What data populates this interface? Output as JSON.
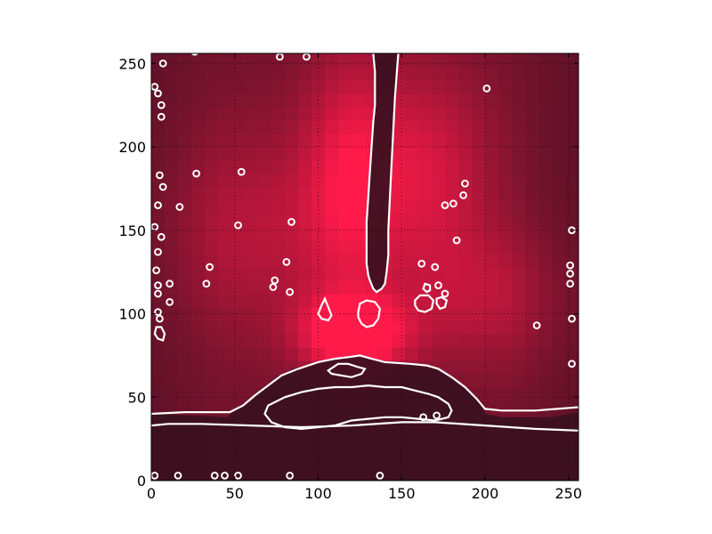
{
  "chart_data": {
    "type": "heatmap",
    "title": "",
    "xlabel": "",
    "ylabel": "",
    "xlim": [
      0,
      256
    ],
    "ylim": [
      0,
      256
    ],
    "xticks": [
      0,
      50,
      100,
      150,
      200,
      250
    ],
    "yticks": [
      0,
      50,
      100,
      150,
      200,
      250
    ],
    "grid": true,
    "grid_style": "dotted",
    "colormap": {
      "low": "#3a1020",
      "high": "#ff1a4a"
    },
    "contour_color": "#ffffff",
    "field_peaks": [
      {
        "x": 122,
        "y": 88,
        "sx": 22,
        "sy": 16,
        "amp": 1.0
      },
      {
        "x": 118,
        "y": 180,
        "sx": 20,
        "sy": 55,
        "amp": 0.55
      },
      {
        "x": 165,
        "y": 185,
        "sx": 28,
        "sy": 45,
        "amp": 0.5
      },
      {
        "x": 200,
        "y": 110,
        "sx": 35,
        "sy": 30,
        "amp": 0.35
      },
      {
        "x": 60,
        "y": 150,
        "sx": 40,
        "sy": 45,
        "amp": 0.35
      }
    ],
    "dark_regions": [
      {
        "name": "vertical-channel",
        "points": [
          [
            133,
            256
          ],
          [
            134,
            245
          ],
          [
            134,
            225
          ],
          [
            133,
            215
          ],
          [
            132,
            200
          ],
          [
            131,
            185
          ],
          [
            130,
            170
          ],
          [
            129,
            155
          ],
          [
            129,
            140
          ],
          [
            129,
            130
          ],
          [
            130,
            123
          ],
          [
            131,
            120
          ],
          [
            133,
            115
          ],
          [
            135,
            113
          ],
          [
            138,
            115
          ],
          [
            140,
            118
          ],
          [
            141,
            125
          ],
          [
            142,
            135
          ],
          [
            142,
            150
          ],
          [
            143,
            170
          ],
          [
            144,
            190
          ],
          [
            145,
            210
          ],
          [
            146,
            230
          ],
          [
            148,
            256
          ]
        ]
      },
      {
        "name": "bottom-dome",
        "points": [
          [
            0,
            0
          ],
          [
            256,
            0
          ],
          [
            256,
            30
          ],
          [
            230,
            31
          ],
          [
            200,
            33
          ],
          [
            170,
            35
          ],
          [
            150,
            35
          ],
          [
            120,
            33
          ],
          [
            90,
            32
          ],
          [
            60,
            33
          ],
          [
            30,
            34
          ],
          [
            0,
            33
          ]
        ]
      },
      {
        "name": "mound",
        "points": [
          [
            45,
            38
          ],
          [
            50,
            42
          ],
          [
            60,
            48
          ],
          [
            68,
            55
          ],
          [
            75,
            62
          ],
          [
            85,
            67
          ],
          [
            100,
            71
          ],
          [
            110,
            73
          ],
          [
            118,
            74
          ],
          [
            125,
            75
          ],
          [
            132,
            73
          ],
          [
            145,
            71
          ],
          [
            160,
            69
          ],
          [
            170,
            67
          ],
          [
            180,
            62
          ],
          [
            190,
            55
          ],
          [
            197,
            48
          ],
          [
            200,
            40
          ],
          [
            210,
            38
          ],
          [
            240,
            38
          ],
          [
            256,
            41
          ],
          [
            256,
            30
          ],
          [
            200,
            33
          ],
          [
            150,
            35
          ],
          [
            100,
            32
          ],
          [
            50,
            33
          ],
          [
            0,
            33
          ],
          [
            0,
            40
          ]
        ]
      }
    ],
    "contours": [
      {
        "name": "vertical-channel-outline",
        "points": [
          [
            133,
            256
          ],
          [
            134,
            245
          ],
          [
            134,
            225
          ],
          [
            133,
            215
          ],
          [
            132,
            200
          ],
          [
            131,
            185
          ],
          [
            130,
            170
          ],
          [
            129,
            155
          ],
          [
            129,
            140
          ],
          [
            129,
            130
          ],
          [
            130,
            123
          ],
          [
            131,
            120
          ],
          [
            133,
            115
          ],
          [
            135,
            113
          ],
          [
            138,
            115
          ],
          [
            140,
            118
          ],
          [
            141,
            125
          ],
          [
            142,
            135
          ],
          [
            142,
            150
          ],
          [
            143,
            170
          ],
          [
            144,
            190
          ],
          [
            145,
            210
          ],
          [
            146,
            230
          ],
          [
            148,
            256
          ]
        ],
        "closed": false
      },
      {
        "name": "channel-blob",
        "points": [
          [
            124,
            101
          ],
          [
            125,
            106
          ],
          [
            129,
            108
          ],
          [
            134,
            107
          ],
          [
            137,
            103
          ],
          [
            136,
            97
          ],
          [
            133,
            93
          ],
          [
            129,
            92
          ],
          [
            126,
            94
          ],
          [
            124,
            98
          ]
        ],
        "closed": true
      },
      {
        "name": "bottom-dome-outline",
        "points": [
          [
            0,
            33
          ],
          [
            10,
            34
          ],
          [
            30,
            34
          ],
          [
            60,
            33
          ],
          [
            90,
            32
          ],
          [
            120,
            33
          ],
          [
            150,
            35
          ],
          [
            170,
            35
          ],
          [
            200,
            33
          ],
          [
            230,
            31
          ],
          [
            256,
            30
          ]
        ],
        "closed": false
      },
      {
        "name": "mound-outer",
        "points": [
          [
            0,
            40
          ],
          [
            20,
            41
          ],
          [
            47,
            41
          ],
          [
            55,
            45
          ],
          [
            62,
            51
          ],
          [
            70,
            57
          ],
          [
            78,
            63
          ],
          [
            88,
            67
          ],
          [
            100,
            71
          ],
          [
            110,
            73
          ],
          [
            118,
            74
          ],
          [
            125,
            75
          ],
          [
            132,
            73
          ],
          [
            140,
            71
          ],
          [
            155,
            70
          ],
          [
            165,
            69
          ],
          [
            172,
            67
          ],
          [
            180,
            62
          ],
          [
            188,
            56
          ],
          [
            195,
            49
          ],
          [
            200,
            43
          ],
          [
            210,
            42
          ],
          [
            230,
            42
          ],
          [
            256,
            44
          ]
        ],
        "closed": false
      },
      {
        "name": "mound-inner",
        "points": [
          [
            70,
            45
          ],
          [
            80,
            50
          ],
          [
            90,
            53
          ],
          [
            100,
            55
          ],
          [
            110,
            56
          ],
          [
            120,
            56
          ],
          [
            130,
            57
          ],
          [
            140,
            56
          ],
          [
            150,
            56
          ],
          [
            158,
            54
          ],
          [
            166,
            52
          ],
          [
            172,
            50
          ],
          [
            178,
            46
          ],
          [
            180,
            42
          ],
          [
            178,
            38
          ],
          [
            170,
            36
          ],
          [
            160,
            37
          ],
          [
            150,
            38
          ],
          [
            140,
            38
          ],
          [
            130,
            37
          ],
          [
            120,
            36
          ],
          [
            110,
            33
          ],
          [
            100,
            32
          ],
          [
            90,
            31
          ],
          [
            80,
            32
          ],
          [
            72,
            35
          ],
          [
            68,
            40
          ]
        ],
        "closed": true
      },
      {
        "name": "mound-core",
        "points": [
          [
            106,
            66
          ],
          [
            112,
            70
          ],
          [
            118,
            70
          ],
          [
            124,
            68
          ],
          [
            128,
            67
          ],
          [
            126,
            64
          ],
          [
            120,
            62
          ],
          [
            114,
            63
          ],
          [
            108,
            64
          ]
        ],
        "closed": true
      },
      {
        "name": "center-left-blob",
        "points": [
          [
            100,
            100
          ],
          [
            102,
            105
          ],
          [
            104,
            109
          ],
          [
            106,
            104
          ],
          [
            108,
            99
          ],
          [
            106,
            96
          ],
          [
            102,
            97
          ]
        ],
        "closed": true
      },
      {
        "name": "right-blob-a",
        "points": [
          [
            158,
            105
          ],
          [
            160,
            102
          ],
          [
            164,
            101
          ],
          [
            168,
            103
          ],
          [
            169,
            108
          ],
          [
            166,
            111
          ],
          [
            161,
            111
          ],
          [
            158,
            108
          ]
        ],
        "closed": true
      },
      {
        "name": "right-blob-b",
        "points": [
          [
            171,
            106
          ],
          [
            173,
            103
          ],
          [
            176,
            104
          ],
          [
            177,
            108
          ],
          [
            174,
            110
          ],
          [
            171,
            109
          ]
        ],
        "closed": true
      },
      {
        "name": "right-blob-c",
        "points": [
          [
            163,
            115
          ],
          [
            165,
            113
          ],
          [
            167,
            114
          ],
          [
            167,
            117
          ],
          [
            164,
            118
          ]
        ],
        "closed": true
      },
      {
        "name": "left-edge-blob",
        "points": [
          [
            2,
            88
          ],
          [
            4,
            85
          ],
          [
            7,
            84
          ],
          [
            8,
            88
          ],
          [
            6,
            92
          ],
          [
            3,
            92
          ]
        ],
        "closed": true
      }
    ],
    "speckles": [
      [
        7,
        250
      ],
      [
        2,
        236
      ],
      [
        4,
        232
      ],
      [
        6,
        225
      ],
      [
        6,
        218
      ],
      [
        5,
        183
      ],
      [
        7,
        176
      ],
      [
        4,
        165
      ],
      [
        17,
        164
      ],
      [
        27,
        184
      ],
      [
        54,
        185
      ],
      [
        52,
        153
      ],
      [
        84,
        155
      ],
      [
        81,
        131
      ],
      [
        74,
        120
      ],
      [
        73,
        116
      ],
      [
        83,
        113
      ],
      [
        35,
        128
      ],
      [
        33,
        118
      ],
      [
        11,
        118
      ],
      [
        4,
        117
      ],
      [
        4,
        112
      ],
      [
        11,
        107
      ],
      [
        4,
        101
      ],
      [
        5,
        97
      ],
      [
        4,
        137
      ],
      [
        6,
        146
      ],
      [
        2,
        152
      ],
      [
        188,
        178
      ],
      [
        187,
        171
      ],
      [
        176,
        165
      ],
      [
        181,
        166
      ],
      [
        183,
        144
      ],
      [
        162,
        130
      ],
      [
        170,
        128
      ],
      [
        172,
        117
      ],
      [
        176,
        112
      ],
      [
        3,
        126
      ],
      [
        252,
        150
      ],
      [
        251,
        129
      ],
      [
        251,
        124
      ],
      [
        251,
        118
      ],
      [
        252,
        97
      ],
      [
        231,
        93
      ],
      [
        252,
        70
      ],
      [
        201,
        235
      ],
      [
        163,
        38
      ],
      [
        171,
        39
      ],
      [
        16,
        3
      ],
      [
        38,
        3
      ],
      [
        44,
        3
      ],
      [
        52,
        3
      ],
      [
        137,
        3
      ],
      [
        83,
        3
      ],
      [
        2,
        3
      ],
      [
        26,
        257
      ],
      [
        77,
        254
      ],
      [
        93,
        254
      ]
    ]
  }
}
